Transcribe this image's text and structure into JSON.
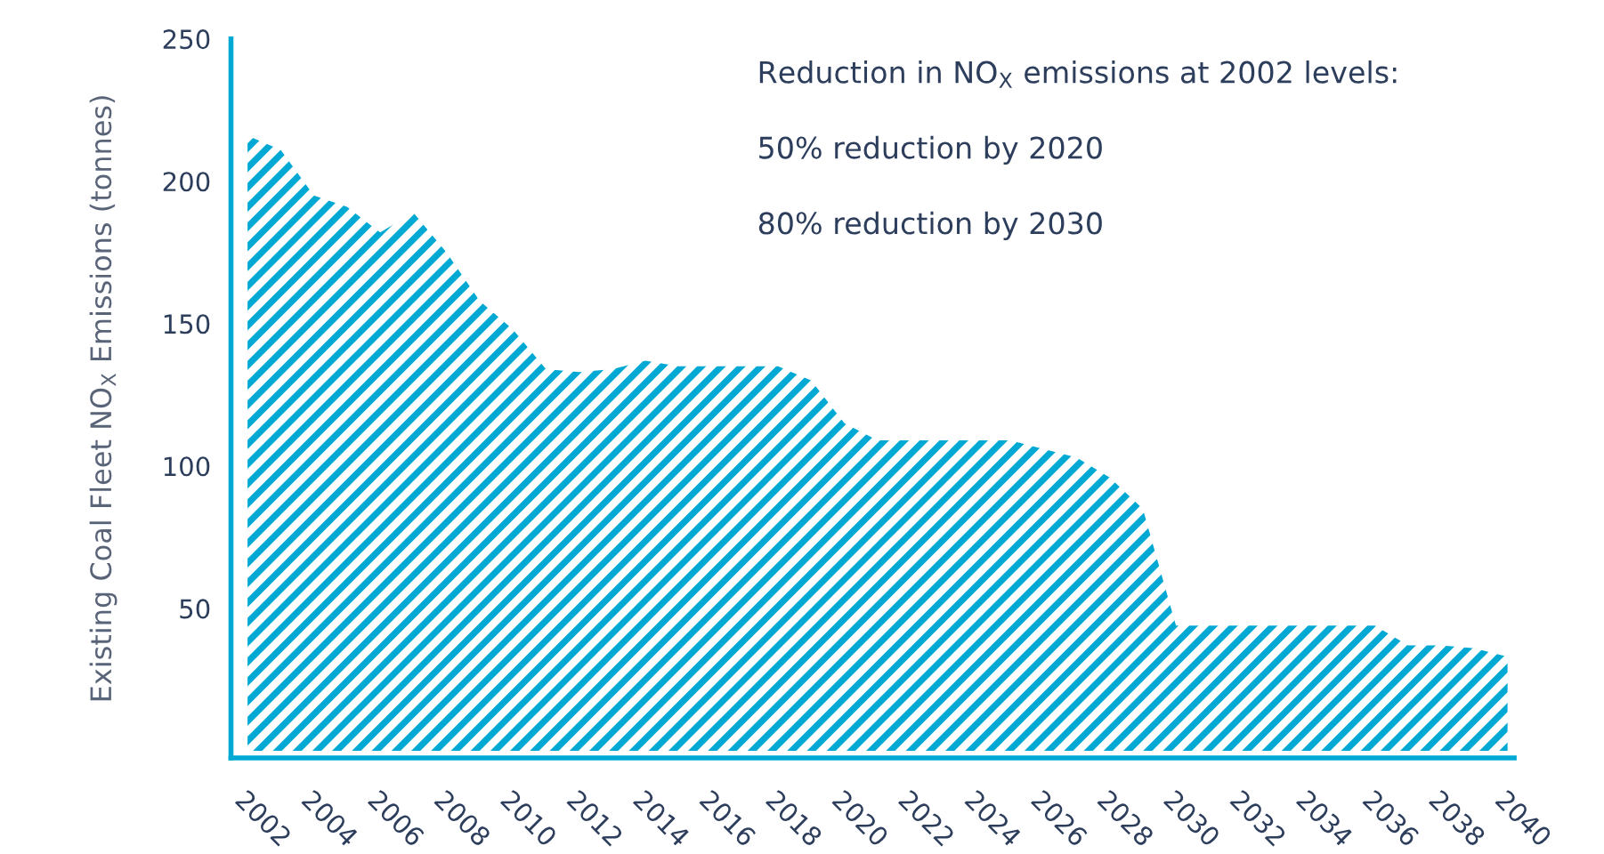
{
  "chart_data": {
    "type": "area",
    "ylabel": "Existing Coal Fleet NO$_{X}$ Emissions (tonnes)",
    "annotations": [
      "Reduction in NO$_{X}$ emissions at 2002 levels:",
      "50% reduction by 2020",
      "80% reduction by 2030"
    ],
    "x": [
      2002,
      2003,
      2004,
      2005,
      2006,
      2007,
      2008,
      2009,
      2010,
      2011,
      2012,
      2013,
      2014,
      2015,
      2016,
      2017,
      2018,
      2019,
      2020,
      2021,
      2022,
      2023,
      2024,
      2025,
      2026,
      2027,
      2028,
      2029,
      2030,
      2031,
      2032,
      2033,
      2034,
      2035,
      2036,
      2037,
      2038,
      2039,
      2040
    ],
    "series": [
      {
        "color": "#00a9d4",
        "values": [
          216,
          211,
          195,
          191,
          182,
          189,
          175,
          158,
          148,
          134,
          133,
          134,
          137,
          135,
          135,
          135,
          135,
          130,
          115,
          109,
          109,
          109,
          109,
          109,
          106,
          103,
          96,
          85,
          44,
          44,
          44,
          44,
          44,
          44,
          44,
          37,
          37,
          36,
          33
        ]
      }
    ],
    "xlim": [
      2001.5,
      2040.2
    ],
    "ylim": [
      -2.5,
      250
    ],
    "xticks": [
      2002,
      2004,
      2006,
      2008,
      2010,
      2012,
      2014,
      2016,
      2018,
      2020,
      2022,
      2024,
      2026,
      2028,
      2030,
      2032,
      2034,
      2036,
      2038,
      2040
    ],
    "yticks": [
      50,
      100,
      150,
      200,
      250
    ],
    "grid": false,
    "legend": false
  }
}
